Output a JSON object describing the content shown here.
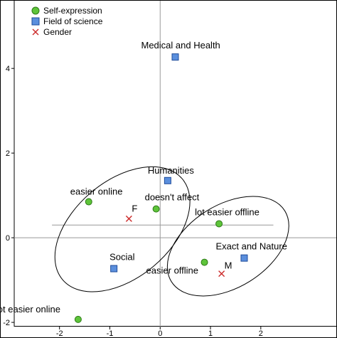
{
  "chart_data": {
    "type": "scatter",
    "title": "",
    "xlabel": "",
    "ylabel": "",
    "xlim": [
      -2.9,
      3.5
    ],
    "ylim": [
      -2.1,
      5.6
    ],
    "xticks": [
      -2,
      -1,
      0,
      1,
      2
    ],
    "yticks": [
      -2,
      0,
      2,
      4
    ],
    "grid": false,
    "legend_position": "top-left",
    "series": [
      {
        "name": "Self-expression",
        "marker": "circle",
        "color": "#5ec43a",
        "points": [
          {
            "x": -1.42,
            "y": 0.85,
            "label": "easier online"
          },
          {
            "x": -0.08,
            "y": 0.68,
            "label": "doesn't affect"
          },
          {
            "x": 1.17,
            "y": 0.33,
            "label": "lot easier offline"
          },
          {
            "x": 0.88,
            "y": -0.58,
            "label": "easier offline"
          },
          {
            "x": -1.63,
            "y": -1.93,
            "label": "lot easier online"
          }
        ]
      },
      {
        "name": "Field of science",
        "marker": "square",
        "color": "#5b8fdd",
        "points": [
          {
            "x": 0.3,
            "y": 4.27,
            "label": "Medical and Health"
          },
          {
            "x": 0.15,
            "y": 1.35,
            "label": "Humanities"
          },
          {
            "x": -0.92,
            "y": -0.73,
            "label": "Social"
          },
          {
            "x": 1.67,
            "y": -0.48,
            "label": "Exact and Nature"
          }
        ]
      },
      {
        "name": "Gender",
        "marker": "x",
        "color": "#cc2a2a",
        "points": [
          {
            "x": -0.62,
            "y": 0.45,
            "label": "F"
          },
          {
            "x": 1.22,
            "y": -0.85,
            "label": "M"
          }
        ]
      }
    ]
  }
}
